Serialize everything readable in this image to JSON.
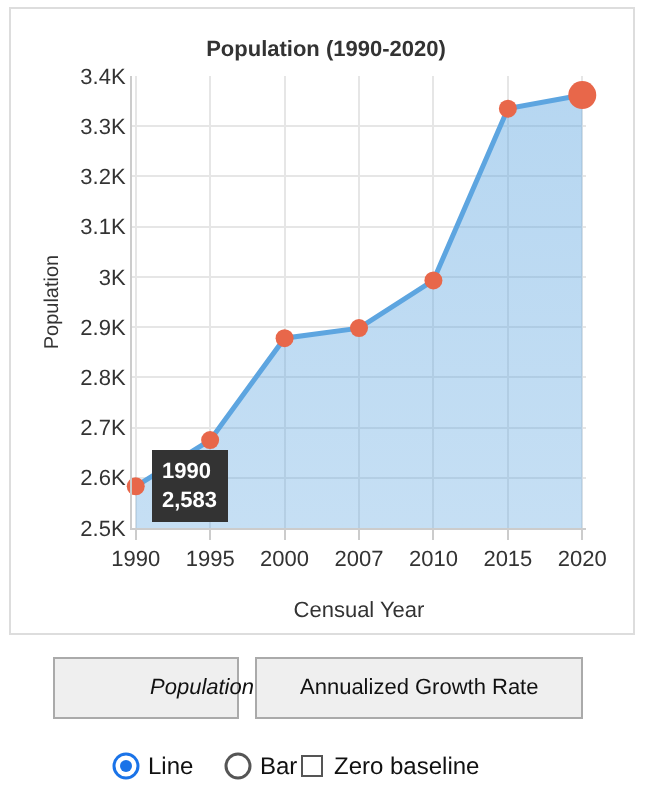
{
  "chart_data": {
    "type": "area",
    "title": "Population (1990-2020)",
    "xlabel": "Censual Year",
    "ylabel": "Population",
    "categories": [
      "1990",
      "1995",
      "2000",
      "2007",
      "2010",
      "2015",
      "2020"
    ],
    "series": [
      {
        "color": "#5da5e0",
        "values": [
          2583,
          2675,
          2878,
          2898,
          2993,
          3335,
          3362
        ],
        "colors": [
          "#e8674a",
          "#e8674a",
          "#e8674a",
          "#e8674a",
          "#e8674a",
          "#e8674a",
          "#e8674a"
        ]
      }
    ],
    "ylim": [
      2500,
      3400
    ],
    "yticks": [
      {
        "value": 2500,
        "label": "2.5K"
      },
      {
        "value": 2600,
        "label": "2.6K"
      },
      {
        "value": 2700,
        "label": "2.7K"
      },
      {
        "value": 2800,
        "label": "2.8K"
      },
      {
        "value": 2900,
        "label": "2.9K"
      },
      {
        "value": 3000,
        "label": "3K"
      },
      {
        "value": 3100,
        "label": "3.1K"
      },
      {
        "value": 3200,
        "label": "3.2K"
      },
      {
        "value": 3300,
        "label": "3.3K"
      },
      {
        "value": 3400,
        "label": "3.4K"
      }
    ],
    "grid": true,
    "marker": "circle",
    "legend": false,
    "annotations": [
      {
        "text": "1990\n2,583",
        "x": "1990",
        "y": 2583
      },
      "Population",
      "Annualized Growth Rate",
      "Line",
      "Bar",
      "Zero baseline"
    ]
  }
}
